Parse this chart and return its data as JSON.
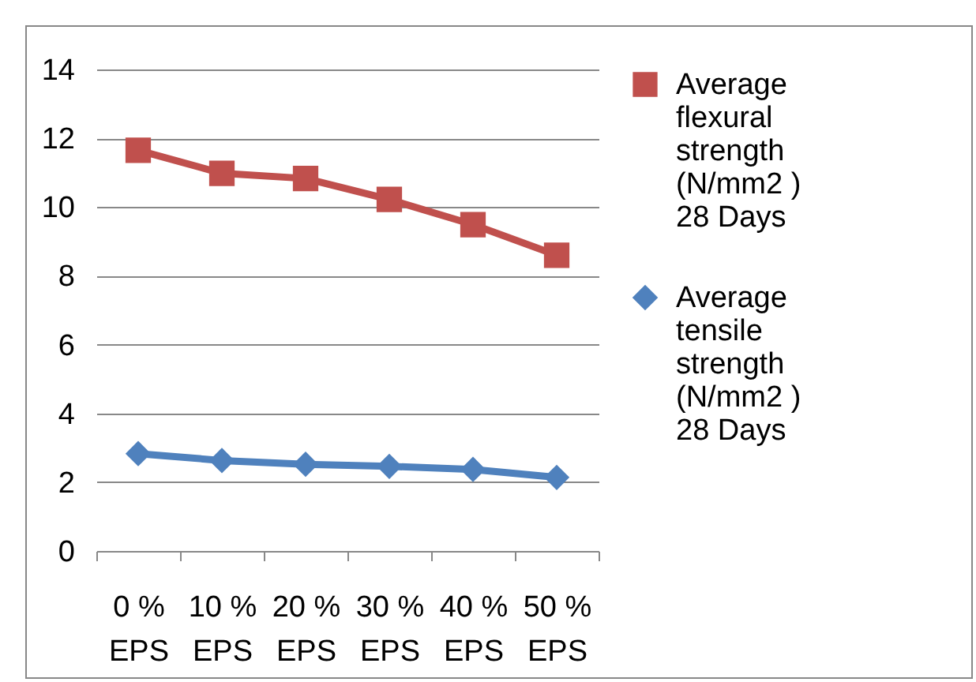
{
  "chart_data": {
    "type": "line",
    "categories": [
      "0 % EPS",
      "10 % EPS",
      "20 % EPS",
      "30 % EPS",
      "40 % EPS",
      "50 % EPS"
    ],
    "series": [
      {
        "name": "Average flexural strength (N/mm2 ) 28 Days",
        "color": "#c0504d",
        "marker": "square",
        "values": [
          11.65,
          10.98,
          10.83,
          10.22,
          9.49,
          8.6
        ]
      },
      {
        "name": "Average tensile strength (N/mm2 ) 28 Days",
        "color": "#4f81bd",
        "marker": "diamond",
        "values": [
          2.83,
          2.63,
          2.52,
          2.46,
          2.37,
          2.14
        ]
      }
    ],
    "ylim": [
      0,
      14
    ],
    "yticks": [
      0,
      2,
      4,
      6,
      8,
      10,
      12,
      14
    ],
    "grid": "y",
    "legend": "right",
    "line_style": "solid"
  }
}
